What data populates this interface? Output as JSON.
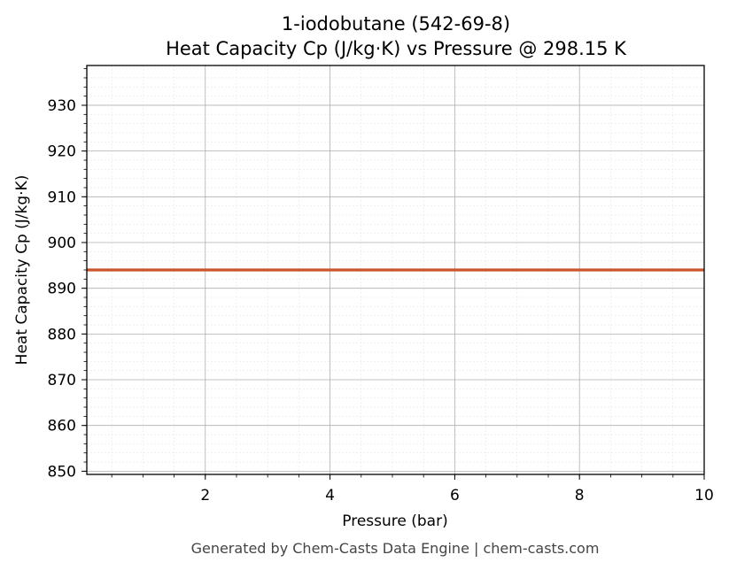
{
  "chart_data": {
    "type": "line",
    "title_line1": "1-iodobutane (542-69-8)",
    "title_line2": "Heat Capacity Cp (J/kg·K) vs Pressure @ 298.15 K",
    "xlabel": "Pressure (bar)",
    "ylabel": "Heat Capacity Cp (J/kg·K)",
    "xlim": [
      0.1,
      10
    ],
    "ylim": [
      849.3,
      938.7
    ],
    "x_ticks": [
      2,
      4,
      6,
      8,
      10
    ],
    "y_ticks": [
      850,
      860,
      870,
      880,
      890,
      900,
      910,
      920,
      930
    ],
    "grid": true,
    "series": [
      {
        "x": [
          0.1,
          10
        ],
        "y": [
          894.0,
          894.0
        ],
        "color": "#c8562a"
      }
    ],
    "footer": "Generated by Chem-Casts Data Engine | chem-casts.com"
  }
}
